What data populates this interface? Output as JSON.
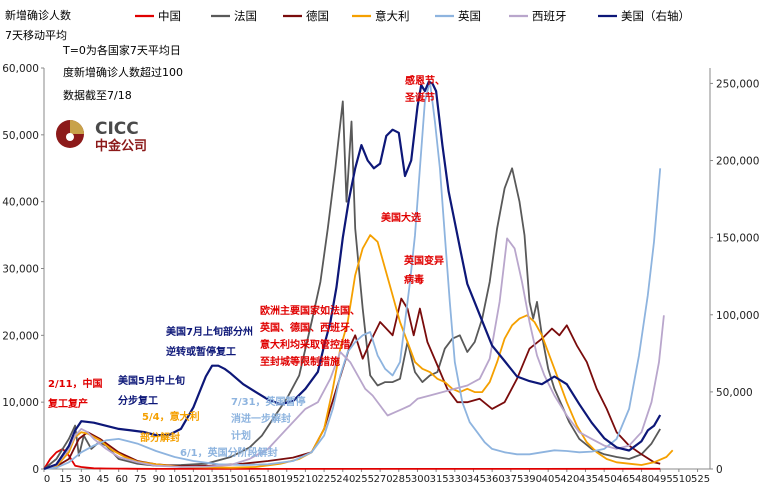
{
  "header": {
    "title": "新增确诊人数",
    "subtitle": "7天移动平均",
    "note_1": "T=0为各国家7天平均日",
    "note_2": "度新增确诊人数超过100",
    "note_3": "数据截至7/18"
  },
  "logo": {
    "en": "CICC",
    "cn": "中金公司"
  },
  "legend": [
    {
      "name": "中国",
      "color": "#e00000"
    },
    {
      "name": "法国",
      "color": "#595959"
    },
    {
      "name": "德国",
      "color": "#7a0c0c"
    },
    {
      "name": "意大利",
      "color": "#f5a000"
    },
    {
      "name": "英国",
      "color": "#8eb4df"
    },
    {
      "name": "西班牙",
      "color": "#b9a6cc"
    },
    {
      "name": "美国（右轴）",
      "color": "#0d1778"
    }
  ],
  "annotations": [
    {
      "id": "cn",
      "lines": [
        "2/11，中国",
        "复工复产"
      ],
      "color": "#e00000"
    },
    {
      "id": "us_may",
      "lines": [
        "美国5月中上旬",
        "分步复工"
      ],
      "color": "#0d1778"
    },
    {
      "id": "it",
      "lines": [
        "5/4，意大利"
      ],
      "color": "#f5a000"
    },
    {
      "id": "es",
      "lines": [
        "部分解封"
      ],
      "color": "#f5a000"
    },
    {
      "id": "uk_jun",
      "lines": [
        "6/1，英国分阶段解封"
      ],
      "color": "#8eb4df"
    },
    {
      "id": "uk_jul",
      "lines": [
        "7/31，英国暂停",
        "消进一步解封",
        "计划"
      ],
      "color": "#8eb4df"
    },
    {
      "id": "us_jul",
      "lines": [
        "美国7月上旬部分州",
        "逆转或暂停复工"
      ],
      "color": "#0d1778"
    },
    {
      "id": "eu",
      "lines": [
        "欧洲主要国家如法国、",
        "英国、德国、西班牙、",
        "意大利均采取管控措",
        "至封城等限制措施"
      ],
      "color": "#e00000"
    },
    {
      "id": "elect",
      "lines": [
        "美国大选"
      ],
      "color": "#e00000"
    },
    {
      "id": "xmas",
      "lines": [
        "感恩节、",
        "圣诞节"
      ],
      "color": "#e00000"
    },
    {
      "id": "variant",
      "lines": [
        "英国变异",
        "病毒"
      ],
      "color": "#e00000"
    }
  ],
  "chart_data": {
    "type": "line",
    "title": "",
    "xlabel": "",
    "ylabel": "新增确诊人数",
    "xlim": [
      0,
      535
    ],
    "x_ticks": [
      0,
      15,
      30,
      45,
      60,
      75,
      90,
      105,
      120,
      135,
      150,
      165,
      180,
      195,
      210,
      225,
      240,
      255,
      270,
      285,
      300,
      315,
      330,
      345,
      360,
      375,
      390,
      405,
      420,
      435,
      450,
      465,
      480,
      495,
      510,
      525
    ],
    "ylim_left": [
      0,
      60000
    ],
    "y_ticks_left": [
      0,
      10000,
      20000,
      30000,
      40000,
      50000,
      60000
    ],
    "y_tick_labels_left": [
      "0",
      "10,000",
      "20,000",
      "30,000",
      "40,000",
      "50,000",
      "60,000"
    ],
    "ylim_right": [
      0,
      260000
    ],
    "y_ticks_right": [
      0,
      50000,
      100000,
      150000,
      200000,
      250000
    ],
    "y_tick_labels_right": [
      "0",
      "50,000",
      "100,000",
      "150,000",
      "200,000",
      "250,000"
    ],
    "series": [
      {
        "name": "中国",
        "axis": "left",
        "color": "#e00000",
        "x": [
          0,
          5,
          10,
          15,
          20,
          25,
          30,
          40,
          50,
          60,
          75,
          90,
          110,
          200,
          300,
          400,
          495
        ],
        "y": [
          0,
          1500,
          2500,
          3000,
          2000,
          500,
          300,
          100,
          80,
          60,
          30,
          20,
          10,
          20,
          10,
          20,
          30
        ]
      },
      {
        "name": "法国",
        "axis": "left",
        "color": "#595959",
        "x": [
          0,
          10,
          20,
          25,
          28,
          32,
          38,
          44,
          50,
          60,
          75,
          90,
          110,
          130,
          150,
          165,
          175,
          185,
          195,
          205,
          215,
          222,
          228,
          234,
          240,
          243,
          247,
          250,
          253,
          256,
          259,
          262,
          268,
          274,
          280,
          286,
          292,
          298,
          304,
          310,
          316,
          322,
          328,
          334,
          340,
          346,
          352,
          358,
          364,
          370,
          376,
          382,
          386,
          390,
          393,
          396,
          400,
          405,
          410,
          416,
          422,
          430,
          440,
          450,
          460,
          470,
          480,
          488,
          495
        ],
        "y": [
          0,
          1500,
          4500,
          6500,
          2000,
          5000,
          3000,
          4000,
          3500,
          1500,
          800,
          500,
          600,
          800,
          1800,
          3200,
          5000,
          7800,
          10500,
          14000,
          22000,
          28000,
          36000,
          45000,
          55000,
          40000,
          52000,
          36000,
          30000,
          24000,
          19000,
          14000,
          12500,
          13000,
          13000,
          13500,
          19000,
          14500,
          13000,
          14000,
          14500,
          18000,
          19500,
          20000,
          17500,
          19000,
          22500,
          28000,
          36000,
          42000,
          45000,
          40000,
          35000,
          25000,
          22500,
          25000,
          20000,
          15000,
          12000,
          9500,
          7000,
          4500,
          3000,
          2200,
          1800,
          1500,
          2200,
          3800,
          6000
        ]
      },
      {
        "name": "德国",
        "axis": "left",
        "color": "#7a0c0c",
        "x": [
          0,
          10,
          20,
          28,
          35,
          45,
          60,
          75,
          90,
          110,
          135,
          160,
          180,
          200,
          215,
          225,
          235,
          245,
          250,
          256,
          262,
          270,
          280,
          287,
          292,
          297,
          302,
          308,
          316,
          324,
          332,
          340,
          350,
          360,
          370,
          380,
          390,
          400,
          408,
          414,
          420,
          428,
          436,
          444,
          452,
          460,
          470,
          480,
          490,
          495
        ],
        "y": [
          0,
          400,
          1500,
          4500,
          5500,
          4500,
          2500,
          1200,
          700,
          400,
          500,
          800,
          1200,
          1700,
          2500,
          6000,
          12000,
          18000,
          20000,
          16500,
          19000,
          22000,
          20000,
          25500,
          24000,
          20000,
          24000,
          19000,
          15500,
          12000,
          10000,
          10000,
          10500,
          9000,
          10000,
          13500,
          18000,
          19500,
          21000,
          20000,
          21500,
          18500,
          16000,
          12000,
          9000,
          5500,
          3500,
          2200,
          1000,
          800
        ]
      },
      {
        "name": "意大利",
        "axis": "left",
        "color": "#f5a000",
        "x": [
          0,
          10,
          20,
          25,
          30,
          35,
          45,
          55,
          65,
          75,
          90,
          110,
          130,
          150,
          170,
          190,
          205,
          215,
          225,
          232,
          238,
          244,
          250,
          256,
          262,
          268,
          274,
          280,
          286,
          292,
          298,
          304,
          310,
          316,
          322,
          328,
          334,
          340,
          346,
          352,
          358,
          364,
          370,
          376,
          382,
          388,
          394,
          400,
          406,
          412,
          420,
          428,
          436,
          444,
          452,
          460,
          470,
          480,
          490,
          500,
          505
        ],
        "y": [
          0,
          400,
          2500,
          4800,
          5500,
          5300,
          4300,
          2800,
          1800,
          1100,
          700,
          300,
          250,
          200,
          300,
          800,
          1500,
          2500,
          6000,
          12000,
          18000,
          22000,
          29000,
          33000,
          35000,
          34000,
          30000,
          26000,
          22000,
          19000,
          16000,
          15000,
          14500,
          13500,
          13000,
          12000,
          11500,
          12000,
          11500,
          11500,
          13000,
          16000,
          19500,
          21500,
          22500,
          23000,
          22000,
          20000,
          17000,
          14000,
          10000,
          6500,
          4000,
          2500,
          1500,
          1000,
          800,
          600,
          1000,
          1800,
          2800
        ]
      },
      {
        "name": "英国",
        "axis": "left",
        "color": "#8eb4df",
        "x": [
          0,
          10,
          20,
          30,
          40,
          50,
          60,
          75,
          90,
          105,
          120,
          140,
          160,
          180,
          200,
          215,
          225,
          232,
          238,
          244,
          250,
          256,
          262,
          268,
          274,
          280,
          286,
          290,
          294,
          298,
          302,
          306,
          310,
          314,
          318,
          322,
          326,
          330,
          336,
          342,
          348,
          354,
          360,
          370,
          380,
          390,
          400,
          410,
          420,
          430,
          440,
          450,
          460,
          470,
          478,
          485,
          490,
          495
        ],
        "y": [
          0,
          200,
          1000,
          2500,
          3500,
          4300,
          4500,
          3800,
          2700,
          1800,
          1200,
          700,
          600,
          700,
          1200,
          2500,
          5000,
          9000,
          14000,
          17500,
          19000,
          20000,
          20500,
          17000,
          15000,
          14000,
          16000,
          22000,
          28000,
          35000,
          45000,
          55000,
          58000,
          52000,
          45000,
          35000,
          25000,
          16000,
          10000,
          7000,
          5500,
          4000,
          3000,
          2500,
          2200,
          2200,
          2500,
          2800,
          2700,
          2500,
          2600,
          3000,
          4500,
          9000,
          17000,
          26000,
          34000,
          45000
        ]
      },
      {
        "name": "西班牙",
        "axis": "left",
        "color": "#b9a6cc",
        "x": [
          0,
          10,
          20,
          25,
          30,
          35,
          40,
          50,
          60,
          75,
          90,
          110,
          130,
          150,
          165,
          180,
          195,
          210,
          220,
          230,
          238,
          246,
          252,
          258,
          264,
          270,
          276,
          282,
          288,
          294,
          300,
          310,
          320,
          330,
          340,
          350,
          358,
          366,
          372,
          378,
          384,
          390,
          396,
          402,
          410,
          420,
          430,
          440,
          450,
          460,
          470,
          480,
          488,
          494,
          498
        ],
        "y": [
          0,
          600,
          3000,
          5000,
          6000,
          5500,
          4500,
          3000,
          1800,
          1000,
          500,
          300,
          350,
          600,
          1500,
          3000,
          6000,
          9000,
          10000,
          13500,
          17500,
          16000,
          14000,
          12000,
          11000,
          9500,
          8000,
          8500,
          9000,
          9500,
          10500,
          11000,
          11500,
          12000,
          12500,
          13500,
          16500,
          25000,
          34500,
          33000,
          28000,
          22000,
          17000,
          14000,
          11000,
          8000,
          5500,
          4500,
          3500,
          3000,
          3500,
          5500,
          10000,
          16000,
          23000
        ]
      },
      {
        "name": "美国（右轴）",
        "axis": "right",
        "color": "#0d1778",
        "x": [
          0,
          10,
          20,
          25,
          30,
          40,
          50,
          60,
          70,
          80,
          90,
          100,
          110,
          120,
          125,
          130,
          135,
          140,
          145,
          150,
          160,
          170,
          180,
          190,
          200,
          210,
          220,
          225,
          230,
          235,
          240,
          245,
          250,
          255,
          260,
          265,
          270,
          275,
          280,
          285,
          290,
          295,
          300,
          303,
          306,
          309,
          312,
          315,
          320,
          325,
          330,
          335,
          340,
          345,
          350,
          360,
          370,
          380,
          390,
          400,
          410,
          420,
          430,
          440,
          450,
          460,
          470,
          480,
          485,
          490,
          495
        ],
        "y": [
          0,
          3000,
          15000,
          25000,
          31000,
          30000,
          28000,
          26000,
          25000,
          24000,
          22000,
          22000,
          26000,
          40000,
          50000,
          60000,
          67000,
          67000,
          65000,
          62000,
          55000,
          50000,
          45000,
          42000,
          44000,
          52000,
          63000,
          80000,
          95000,
          118000,
          150000,
          175000,
          195000,
          210000,
          200000,
          195000,
          198000,
          216000,
          220000,
          218000,
          190000,
          200000,
          235000,
          249000,
          245000,
          251000,
          250000,
          245000,
          210000,
          180000,
          160000,
          140000,
          120000,
          110000,
          100000,
          80000,
          70000,
          60000,
          57000,
          55000,
          60000,
          55000,
          42000,
          30000,
          20000,
          14000,
          12000,
          18000,
          25000,
          28000,
          35000
        ]
      }
    ]
  }
}
